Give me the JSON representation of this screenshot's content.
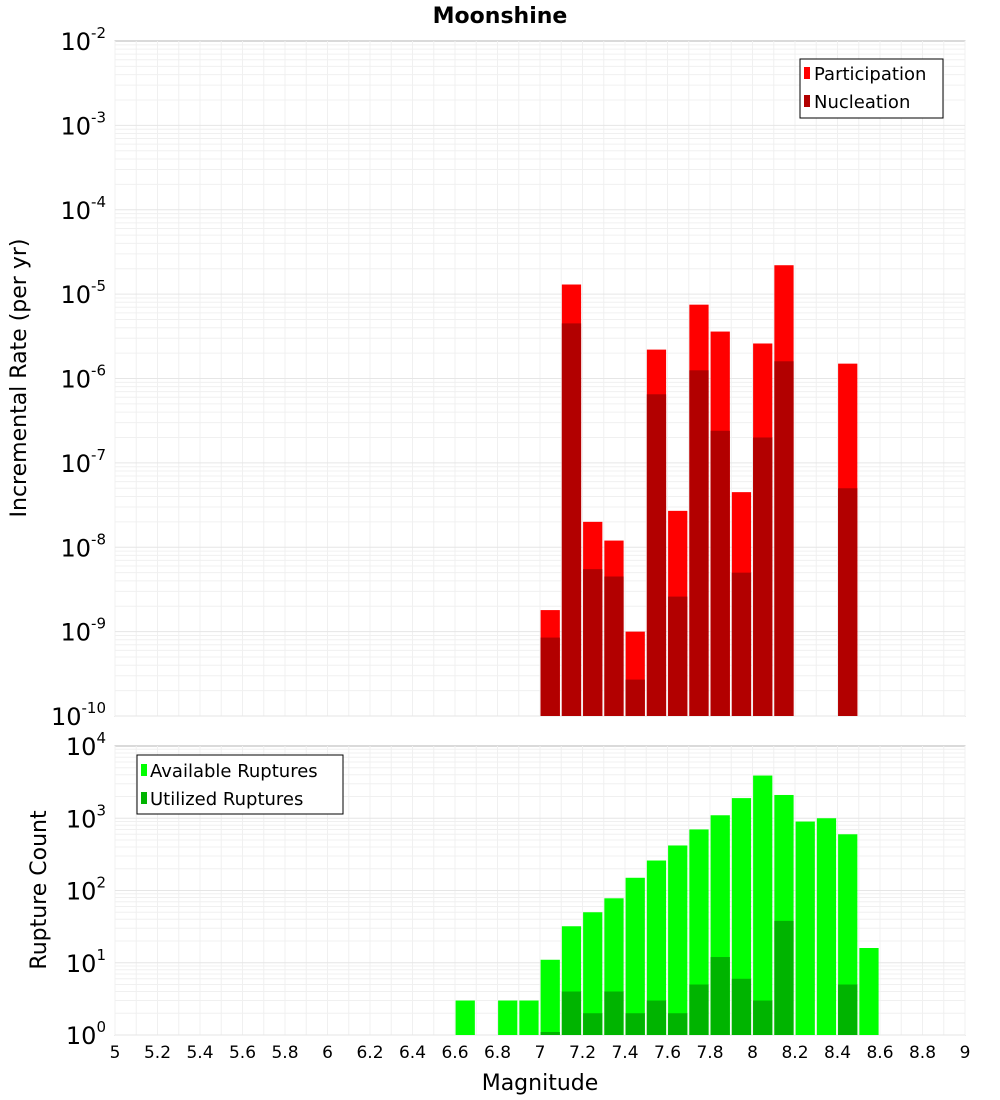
{
  "chart_data": [
    {
      "type": "bar",
      "title": "Moonshine",
      "xlabel": "",
      "ylabel": "Incremental Rate (per yr)",
      "yscale": "log",
      "ylim": [
        1e-10,
        0.01
      ],
      "xlim": [
        5,
        9
      ],
      "grid": true,
      "legend_position": "top-right",
      "bar_mode": "overlay",
      "x": [
        7.0,
        7.1,
        7.2,
        7.3,
        7.4,
        7.5,
        7.6,
        7.7,
        7.8,
        7.9,
        8.0,
        8.1,
        8.2,
        8.3,
        8.4
      ],
      "series": [
        {
          "name": "Participation",
          "color": "#ff0000",
          "values": [
            1.8e-09,
            1.3e-05,
            2e-08,
            1.2e-08,
            1e-09,
            2.2e-06,
            2.7e-08,
            7.5e-06,
            3.6e-06,
            4.5e-08,
            2.6e-06,
            2.2e-05,
            null,
            null,
            1.5e-06
          ]
        },
        {
          "name": "Nucleation",
          "color": "#b20000",
          "values": [
            8.5e-10,
            4.5e-06,
            5.5e-09,
            4.5e-09,
            2.7e-10,
            6.5e-07,
            2.6e-09,
            1.25e-06,
            2.4e-07,
            5e-09,
            2e-07,
            1.6e-06,
            null,
            null,
            5e-08
          ]
        }
      ]
    },
    {
      "type": "bar",
      "title": "",
      "xlabel": "Magnitude",
      "ylabel": "Rupture Count",
      "yscale": "log",
      "ylim": [
        1,
        10000
      ],
      "xlim": [
        5,
        9
      ],
      "grid": true,
      "legend_position": "top-left",
      "bar_mode": "overlay",
      "x": [
        6.6,
        6.8,
        6.9,
        7.0,
        7.1,
        7.2,
        7.3,
        7.4,
        7.5,
        7.6,
        7.7,
        7.8,
        7.9,
        8.0,
        8.1,
        8.2,
        8.3,
        8.4,
        8.5
      ],
      "series": [
        {
          "name": "Available Ruptures",
          "color": "#00ff00",
          "values": [
            3,
            3,
            3,
            11,
            32,
            50,
            78,
            150,
            260,
            420,
            700,
            1100,
            1900,
            3900,
            2100,
            900,
            1000,
            600,
            16
          ]
        },
        {
          "name": "Utilized Ruptures",
          "color": "#00b400",
          "values": [
            null,
            null,
            null,
            1.1,
            4,
            2,
            4,
            2,
            3,
            2,
            5,
            12,
            6,
            3,
            38,
            null,
            null,
            5,
            null
          ]
        }
      ]
    }
  ],
  "x_ticks": [
    "5",
    "5.2",
    "5.4",
    "5.6",
    "5.8",
    "6",
    "6.2",
    "6.4",
    "6.6",
    "6.8",
    "7",
    "7.2",
    "7.4",
    "7.6",
    "7.8",
    "8",
    "8.2",
    "8.4",
    "8.6",
    "8.8",
    "9"
  ],
  "top_y_exponents": [
    "-10",
    "-9",
    "-8",
    "-7",
    "-6",
    "-5",
    "-4",
    "-3",
    "-2"
  ],
  "bottom_y_exponents": [
    "0",
    "1",
    "2",
    "3",
    "4"
  ],
  "y_tick_base": "10"
}
